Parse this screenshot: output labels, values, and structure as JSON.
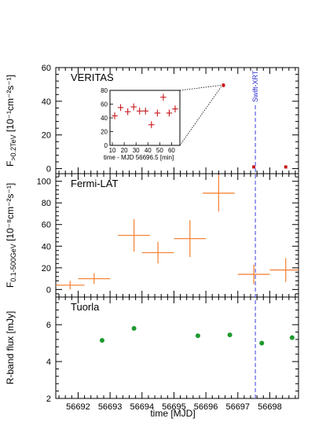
{
  "colors": {
    "veritas": "#c8161d",
    "fermi": "#f5863a",
    "tuorla": "#1e9a2e",
    "swift": "#6a6ae6",
    "axis": "#000000"
  },
  "chart_data": {
    "type": "scatter",
    "shared_x": {
      "label": "time [MJD]",
      "range": [
        56691.3,
        56698.9
      ],
      "ticks": [
        56692,
        56693,
        56694,
        56695,
        56696,
        56697,
        56698
      ],
      "tick_labels": [
        "56692",
        "56693",
        "56694",
        "56695",
        "56696",
        "56697",
        "56698"
      ]
    },
    "swift_xrt": {
      "label": "Swift-XRT",
      "x": 56697.55
    },
    "panels": [
      {
        "name": "VERITAS",
        "ylabel_main": "F",
        "ylabel_sub": ">0.2TeV",
        "ylabel_rest": " [10⁻¹cm⁻²s⁻¹]",
        "ylim": [
          -3,
          60
        ],
        "yticks": [
          0,
          20,
          40,
          60
        ],
        "ytick_labels": [
          "0",
          "20",
          "40",
          "60"
        ],
        "points": [
          {
            "x": 56696.55,
            "y": 49.5,
            "yerr": 1.2
          },
          {
            "x": 56697.5,
            "y": 1.0,
            "yerr": 0.5
          },
          {
            "x": 56698.5,
            "y": 1.0,
            "yerr": 0.5
          }
        ],
        "inset": {
          "xlabel": "time - MJD 56696.5 [min]",
          "xlim": [
            8,
            67
          ],
          "ylim": [
            0,
            80
          ],
          "xticks": [
            10,
            20,
            30,
            40,
            50,
            60
          ],
          "yticks": [
            0,
            20,
            40,
            60,
            80
          ],
          "xtick_labels": [
            "10",
            "20",
            "30",
            "40",
            "50",
            "60"
          ],
          "ytick_labels": [
            "0",
            "20",
            "40",
            "60",
            "80"
          ],
          "points": [
            {
              "x": 12,
              "y": 43,
              "xerr": 2.5,
              "yerr": 5
            },
            {
              "x": 17,
              "y": 55,
              "xerr": 2.5,
              "yerr": 5
            },
            {
              "x": 23,
              "y": 49,
              "xerr": 2.5,
              "yerr": 5
            },
            {
              "x": 28,
              "y": 56,
              "xerr": 2.5,
              "yerr": 5
            },
            {
              "x": 33,
              "y": 50,
              "xerr": 2.5,
              "yerr": 5
            },
            {
              "x": 38,
              "y": 50,
              "xerr": 2.5,
              "yerr": 5
            },
            {
              "x": 43,
              "y": 30,
              "xerr": 2.5,
              "yerr": 5
            },
            {
              "x": 48,
              "y": 47,
              "xerr": 2.5,
              "yerr": 5
            },
            {
              "x": 53,
              "y": 70,
              "xerr": 2.5,
              "yerr": 5
            },
            {
              "x": 58,
              "y": 47,
              "xerr": 2.5,
              "yerr": 5
            },
            {
              "x": 63,
              "y": 53,
              "xerr": 2.5,
              "yerr": 5
            }
          ]
        }
      },
      {
        "name": "Fermi-LAT",
        "ylabel_main": "F",
        "ylabel_sub": "0.1-500GeV",
        "ylabel_rest": " [10⁻⁸cm⁻²s⁻¹]",
        "ylim": [
          -7,
          107
        ],
        "yticks": [
          0,
          20,
          40,
          60,
          80,
          100
        ],
        "ytick_labels": [
          "0",
          "20",
          "40",
          "60",
          "80",
          "100"
        ],
        "points": [
          {
            "x": 56691.75,
            "y": 4,
            "xerr": 0.45,
            "yerr": 4
          },
          {
            "x": 56692.5,
            "y": 10,
            "xerr": 0.5,
            "yerr": 5
          },
          {
            "x": 56693.75,
            "y": 50,
            "xerr": 0.5,
            "yerr": 15
          },
          {
            "x": 56694.5,
            "y": 34,
            "xerr": 0.5,
            "yerr": 10
          },
          {
            "x": 56695.5,
            "y": 47,
            "xerr": 0.5,
            "yerr": 17
          },
          {
            "x": 56696.4,
            "y": 89,
            "xerr": 0.5,
            "yerr": 17
          },
          {
            "x": 56697.5,
            "y": 14,
            "xerr": 0.5,
            "yerr": 9
          },
          {
            "x": 56698.5,
            "y": 18,
            "xerr": 0.5,
            "yerr": 11
          }
        ]
      },
      {
        "name": "Tuorla",
        "ylabel_main": "R-band flux [mJy]",
        "ylim": [
          2,
          7.5
        ],
        "yticks": [
          2,
          4,
          6
        ],
        "ytick_labels": [
          "2",
          "4",
          "6"
        ],
        "points": [
          {
            "x": 56692.75,
            "y": 5.15
          },
          {
            "x": 56693.75,
            "y": 5.8
          },
          {
            "x": 56695.75,
            "y": 5.4
          },
          {
            "x": 56696.75,
            "y": 5.45
          },
          {
            "x": 56697.75,
            "y": 5.0
          },
          {
            "x": 56698.7,
            "y": 5.3
          }
        ]
      }
    ]
  }
}
